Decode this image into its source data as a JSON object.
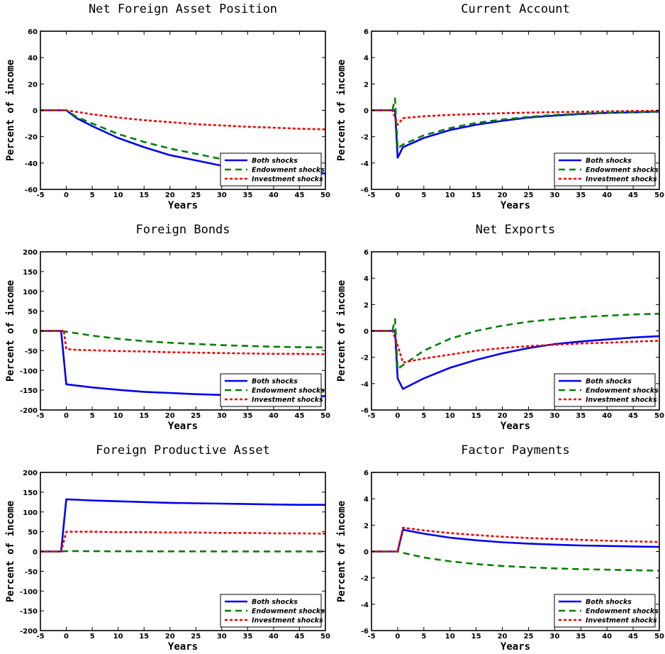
{
  "colors": {
    "both": "#0000ee",
    "endowment": "#008000",
    "investment": "#ee0000"
  },
  "chart_data": [
    {
      "type": "line",
      "title": "Net Foreign Asset Position",
      "xlabel": "Years",
      "ylabel": "Percent of income",
      "xlim": [
        -5,
        50
      ],
      "ylim": [
        -60,
        60
      ],
      "xticks": [
        -5,
        0,
        5,
        10,
        15,
        20,
        25,
        30,
        35,
        40,
        45,
        50
      ],
      "yticks": [
        -60,
        -40,
        -20,
        0,
        20,
        40,
        60
      ],
      "legend_position": "bottom-right",
      "series": [
        {
          "name": "Both shocks",
          "x": [
            -5,
            -1,
            0,
            2,
            5,
            10,
            15,
            20,
            25,
            30,
            35,
            40,
            45,
            50
          ],
          "y": [
            0,
            0,
            0,
            -6,
            -12,
            -21,
            -28,
            -34,
            -38,
            -42,
            -44,
            -46,
            -47,
            -48
          ]
        },
        {
          "name": "Endowment shocks",
          "x": [
            -5,
            -1,
            0,
            2,
            5,
            10,
            15,
            20,
            25,
            30,
            35,
            40
          ],
          "y": [
            0,
            0,
            0,
            -5,
            -10,
            -18,
            -24,
            -29,
            -33,
            -37,
            -39,
            -41
          ]
        },
        {
          "name": "Investment shocks",
          "x": [
            -5,
            -1,
            0,
            5,
            10,
            15,
            20,
            25,
            30,
            35,
            40,
            45,
            50
          ],
          "y": [
            0,
            0,
            0,
            -3,
            -5.5,
            -7.5,
            -9,
            -10.5,
            -11.5,
            -12.5,
            -13.2,
            -14,
            -14.5
          ]
        }
      ]
    },
    {
      "type": "line",
      "title": "Current Account",
      "xlabel": "Years",
      "ylabel": "Percent of income",
      "xlim": [
        -5,
        50
      ],
      "ylim": [
        -6,
        6
      ],
      "xticks": [
        -5,
        0,
        5,
        10,
        15,
        20,
        25,
        30,
        35,
        40,
        45,
        50
      ],
      "yticks": [
        -6,
        -4,
        -2,
        0,
        2,
        4,
        6
      ],
      "legend_position": "bottom-right",
      "series": [
        {
          "name": "Both shocks",
          "x": [
            -5,
            -1,
            -0.5,
            0,
            1,
            5,
            10,
            15,
            20,
            25,
            30,
            35,
            40,
            45,
            50
          ],
          "y": [
            0,
            0,
            0,
            -3.6,
            -2.8,
            -2.1,
            -1.5,
            -1.1,
            -0.8,
            -0.55,
            -0.4,
            -0.28,
            -0.2,
            -0.15,
            -0.1
          ]
        },
        {
          "name": "Endowment shocks",
          "x": [
            -5,
            -1,
            -0.5,
            0,
            1,
            5,
            10,
            15,
            20,
            25,
            30,
            35,
            40,
            45,
            50
          ],
          "y": [
            0,
            0,
            0.9,
            -2.9,
            -2.6,
            -1.9,
            -1.35,
            -0.95,
            -0.7,
            -0.5,
            -0.35,
            -0.25,
            -0.18,
            -0.13,
            -0.1
          ]
        },
        {
          "name": "Investment shocks",
          "x": [
            -5,
            -1,
            0,
            1,
            5,
            10,
            15,
            20,
            25,
            30,
            35,
            40,
            45,
            50
          ],
          "y": [
            0,
            0,
            -1.1,
            -0.6,
            -0.45,
            -0.35,
            -0.28,
            -0.22,
            -0.18,
            -0.14,
            -0.11,
            -0.08,
            -0.05,
            -0.03
          ]
        }
      ]
    },
    {
      "type": "line",
      "title": "Foreign Bonds",
      "xlabel": "Years",
      "ylabel": "Percent of income",
      "xlim": [
        -5,
        50
      ],
      "ylim": [
        -200,
        200
      ],
      "xticks": [
        -5,
        0,
        5,
        10,
        15,
        20,
        25,
        30,
        35,
        40,
        45,
        50
      ],
      "yticks": [
        -200,
        -150,
        -100,
        -50,
        0,
        50,
        100,
        150,
        200
      ],
      "legend_position": "bottom-right",
      "series": [
        {
          "name": "Both shocks",
          "x": [
            -5,
            -1,
            0,
            5,
            10,
            15,
            20,
            25,
            30,
            35,
            40,
            45,
            50
          ],
          "y": [
            0,
            0,
            -135,
            -143,
            -149,
            -154,
            -157,
            -160,
            -162,
            -163,
            -164,
            -165,
            -165
          ]
        },
        {
          "name": "Endowment shocks",
          "x": [
            -5,
            -1,
            0,
            5,
            10,
            15,
            20,
            25,
            30,
            35,
            40,
            45,
            50
          ],
          "y": [
            0,
            0,
            -2,
            -12,
            -20,
            -26,
            -30,
            -33,
            -36,
            -38,
            -40,
            -41,
            -42
          ]
        },
        {
          "name": "Investment shocks",
          "x": [
            -5,
            -1,
            -0.5,
            0,
            2,
            5,
            10,
            15,
            20,
            25,
            30,
            35,
            40,
            45,
            50
          ],
          "y": [
            0,
            0,
            2,
            -46,
            -48,
            -49,
            -51,
            -52,
            -54,
            -55,
            -56,
            -57,
            -58,
            -58,
            -59
          ]
        }
      ]
    },
    {
      "type": "line",
      "title": "Net Exports",
      "xlabel": "Years",
      "ylabel": "Percent of income",
      "xlim": [
        -5,
        50
      ],
      "ylim": [
        -6,
        6
      ],
      "xticks": [
        -5,
        0,
        5,
        10,
        15,
        20,
        25,
        30,
        35,
        40,
        45,
        50
      ],
      "yticks": [
        -6,
        -4,
        -2,
        0,
        2,
        4,
        6
      ],
      "legend_position": "bottom-right",
      "series": [
        {
          "name": "Both shocks",
          "x": [
            -5,
            -1,
            -0.5,
            0,
            1,
            5,
            10,
            15,
            20,
            25,
            30,
            35,
            40,
            45,
            50
          ],
          "y": [
            0,
            0,
            0,
            -3.6,
            -4.4,
            -3.6,
            -2.8,
            -2.2,
            -1.7,
            -1.3,
            -1.0,
            -0.8,
            -0.65,
            -0.5,
            -0.4
          ]
        },
        {
          "name": "Endowment shocks",
          "x": [
            -5,
            -1,
            -0.5,
            0,
            1,
            5,
            10,
            15,
            20,
            25,
            30,
            35,
            40,
            45,
            50
          ],
          "y": [
            0,
            0,
            0.9,
            -2.9,
            -2.6,
            -1.5,
            -0.6,
            0.0,
            0.4,
            0.7,
            0.9,
            1.05,
            1.15,
            1.25,
            1.3
          ]
        },
        {
          "name": "Investment shocks",
          "x": [
            -5,
            -1,
            0,
            1,
            5,
            10,
            15,
            20,
            25,
            30,
            35,
            40,
            45,
            50
          ],
          "y": [
            0,
            0,
            -1.1,
            -2.4,
            -2.1,
            -1.8,
            -1.5,
            -1.3,
            -1.15,
            -1.05,
            -0.95,
            -0.9,
            -0.82,
            -0.75
          ]
        }
      ]
    },
    {
      "type": "line",
      "title": "Foreign Productive Asset",
      "xlabel": "Years",
      "ylabel": "Percent of income",
      "xlim": [
        -5,
        50
      ],
      "ylim": [
        -200,
        200
      ],
      "xticks": [
        -5,
        0,
        5,
        10,
        15,
        20,
        25,
        30,
        35,
        40,
        45,
        50
      ],
      "yticks": [
        -200,
        -150,
        -100,
        -50,
        0,
        50,
        100,
        150,
        200
      ],
      "legend_position": "bottom-right",
      "series": [
        {
          "name": "Both shocks",
          "x": [
            -5,
            -1,
            0,
            2,
            5,
            10,
            15,
            20,
            25,
            30,
            35,
            40,
            45,
            50
          ],
          "y": [
            0,
            0,
            132,
            131,
            129,
            127,
            125,
            123,
            122,
            121,
            120,
            119,
            118,
            118
          ]
        },
        {
          "name": "Endowment shocks",
          "x": [
            -5,
            -1,
            0,
            10,
            20,
            30,
            40,
            50
          ],
          "y": [
            0,
            0,
            1,
            0.5,
            0.3,
            0.2,
            0.1,
            0
          ]
        },
        {
          "name": "Investment shocks",
          "x": [
            -5,
            -1,
            0,
            5,
            10,
            15,
            20,
            25,
            30,
            35,
            40,
            45,
            50
          ],
          "y": [
            0,
            0,
            50,
            50,
            49,
            49,
            48,
            48,
            47,
            47,
            46,
            46,
            45
          ]
        }
      ]
    },
    {
      "type": "line",
      "title": "Factor Payments",
      "xlabel": "Years",
      "ylabel": "Percent of income",
      "xlim": [
        -5,
        50
      ],
      "ylim": [
        -6,
        6
      ],
      "xticks": [
        -5,
        0,
        5,
        10,
        15,
        20,
        25,
        30,
        35,
        40,
        45,
        50
      ],
      "yticks": [
        -6,
        -4,
        -2,
        0,
        2,
        4,
        6
      ],
      "legend_position": "bottom-right",
      "series": [
        {
          "name": "Both shocks",
          "x": [
            -5,
            0,
            1,
            5,
            10,
            15,
            20,
            25,
            30,
            35,
            40,
            45,
            50
          ],
          "y": [
            0,
            0,
            1.65,
            1.35,
            1.05,
            0.85,
            0.7,
            0.6,
            0.52,
            0.46,
            0.42,
            0.38,
            0.35
          ]
        },
        {
          "name": "Endowment shocks",
          "x": [
            -5,
            0,
            1,
            5,
            10,
            15,
            20,
            25,
            30,
            35,
            40,
            45,
            50
          ],
          "y": [
            0,
            0,
            -0.1,
            -0.45,
            -0.75,
            -0.95,
            -1.1,
            -1.2,
            -1.28,
            -1.34,
            -1.38,
            -1.42,
            -1.45
          ]
        },
        {
          "name": "Investment shocks",
          "x": [
            -5,
            0,
            1,
            5,
            10,
            15,
            20,
            25,
            30,
            35,
            40,
            45,
            50
          ],
          "y": [
            0,
            0,
            1.8,
            1.6,
            1.4,
            1.25,
            1.12,
            1.02,
            0.95,
            0.88,
            0.82,
            0.77,
            0.72
          ]
        }
      ]
    }
  ]
}
